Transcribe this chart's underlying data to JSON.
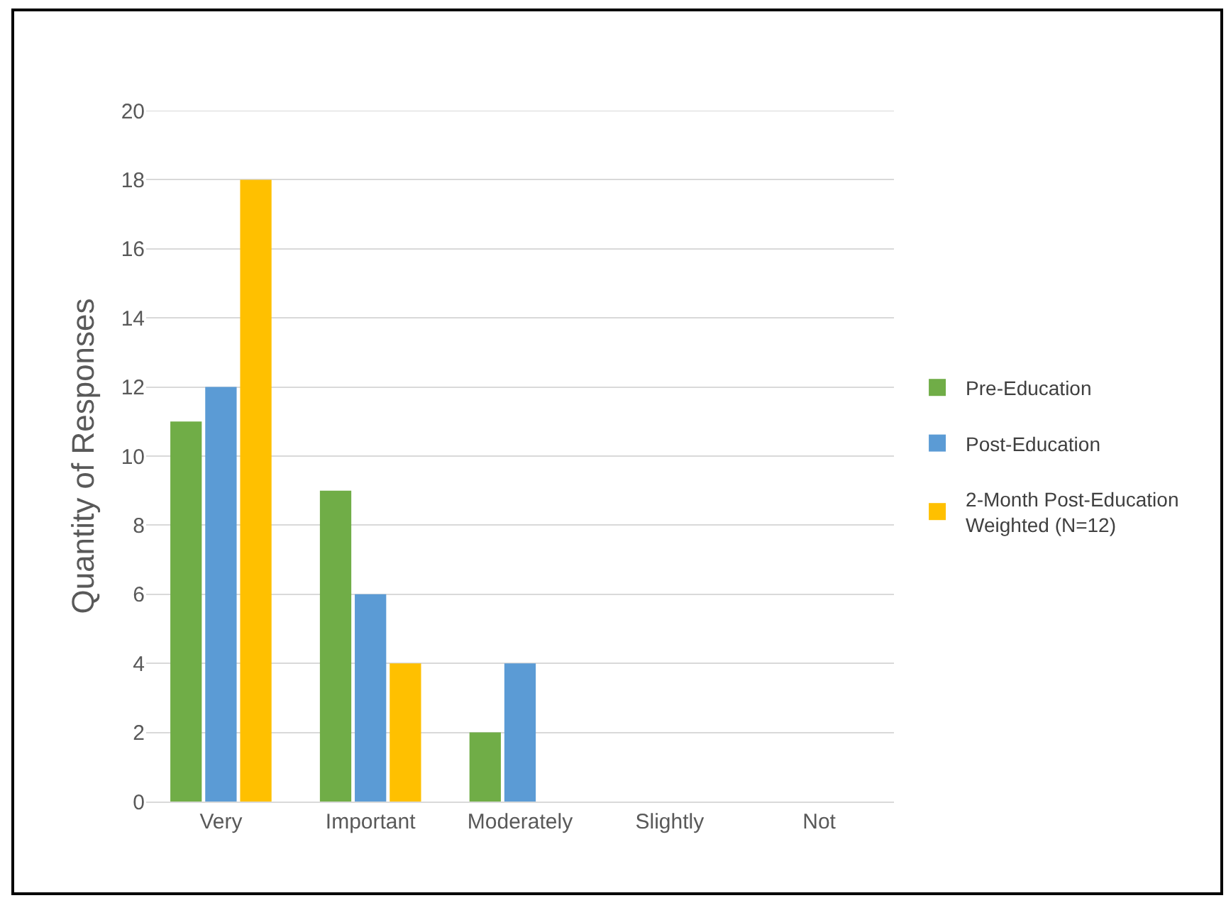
{
  "chart_data": {
    "type": "bar",
    "ylabel": "Quantity of Responses",
    "categories": [
      "Very",
      "Important",
      "Moderately",
      "Slightly",
      "Not"
    ],
    "series": [
      {
        "name": "Pre-Education",
        "color": "#70ad47",
        "values": [
          11,
          9,
          2,
          0,
          0
        ]
      },
      {
        "name": "Post-Education",
        "color": "#5b9bd5",
        "values": [
          12,
          6,
          4,
          0,
          0
        ]
      },
      {
        "name": "2-Month Post-Education Weighted (N=12)",
        "color": "#ffc000",
        "values": [
          18,
          4,
          0,
          0,
          0
        ]
      }
    ],
    "ylim": [
      0,
      20
    ],
    "yticks": [
      0,
      2,
      4,
      6,
      8,
      10,
      12,
      14,
      16,
      18,
      20
    ],
    "grid": "y",
    "legend": "right"
  }
}
